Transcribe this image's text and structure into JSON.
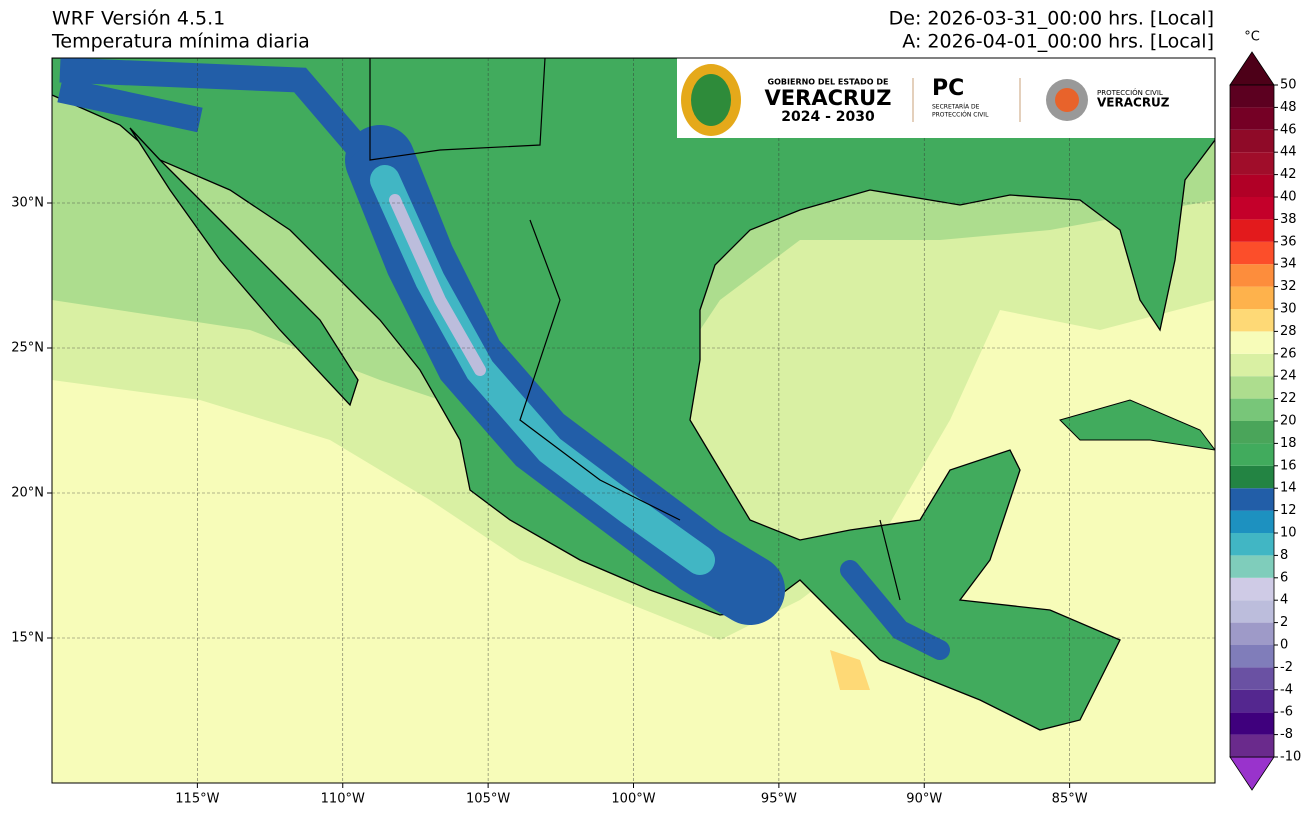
{
  "header": {
    "title_left": "WRF Versión 4.5.1",
    "subtitle_left": "Temperatura mínima diaria",
    "title_right": "De: 2026-03-31_00:00 hrs. [Local]",
    "subtitle_right": "A: 2026-04-01_00:00 hrs. [Local]"
  },
  "map": {
    "xlim": [
      -120,
      -80
    ],
    "ylim": [
      10,
      35
    ],
    "xticks": [
      {
        "value": -115,
        "label": "115°W"
      },
      {
        "value": -110,
        "label": "110°W"
      },
      {
        "value": -105,
        "label": "105°W"
      },
      {
        "value": -100,
        "label": "100°W"
      },
      {
        "value": -95,
        "label": "95°W"
      },
      {
        "value": -90,
        "label": "90°W"
      },
      {
        "value": -85,
        "label": "85°W"
      }
    ],
    "yticks": [
      {
        "value": 15,
        "label": "15°N"
      },
      {
        "value": 20,
        "label": "20°N"
      },
      {
        "value": 25,
        "label": "25°N"
      },
      {
        "value": 30,
        "label": "30°N"
      }
    ],
    "grid": true
  },
  "colorbar": {
    "unit": "°C",
    "levels": [
      -10,
      -8,
      -6,
      -4,
      -2,
      0,
      2,
      4,
      6,
      8,
      10,
      12,
      14,
      16,
      18,
      20,
      22,
      24,
      26,
      28,
      30,
      32,
      34,
      36,
      38,
      40,
      42,
      44,
      46,
      48,
      50
    ],
    "colors": [
      "#6a2a8c",
      "#3f007d",
      "#54278f",
      "#6a51a3",
      "#807dba",
      "#9e9ac8",
      "#bcbddc",
      "#cfcbe6",
      "#7fcdbb",
      "#41b6c4",
      "#1d91c0",
      "#225ea8",
      "#238443",
      "#41ab5d",
      "#4aa55a",
      "#78c679",
      "#addd8e",
      "#d9f0a3",
      "#f7fcb9",
      "#fed976",
      "#feb24c",
      "#fd8d3c",
      "#fc4e2a",
      "#e31a1c",
      "#c4002a",
      "#b10026",
      "#a00d2a",
      "#8f0a28",
      "#750025",
      "#5c0020"
    ],
    "under_color": "#9933cc",
    "over_color": "#4d0018"
  },
  "logo": {
    "line1": "GOBIERNO DEL ESTADO DE",
    "line2": "VERACRUZ",
    "line3": "2024 - 2030",
    "pc": "PC",
    "pc_line1": "SECRETARÍA DE",
    "pc_line2": "PROTECCIÓN CIVIL",
    "pcv_line1": "PROTECCIÓN CIVIL",
    "pcv_line2": "VERACRUZ"
  }
}
